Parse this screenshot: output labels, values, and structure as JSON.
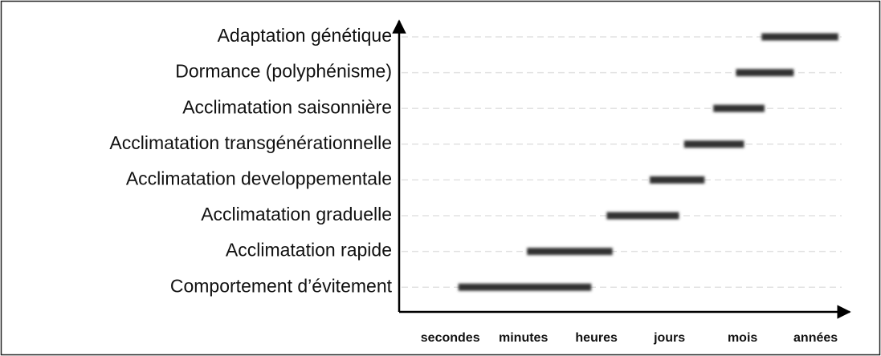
{
  "chart_data": {
    "type": "floating_bar",
    "categories": [
      "Adaptation génétique",
      "Dormance (polyphénisme)",
      "Acclimatation saisonnière",
      "Acclimatation transgénérationnelle",
      "Acclimatation developpementale",
      "Acclimatation graduelle",
      "Acclimatation rapide",
      "Comportement d’évitement"
    ],
    "start": [
      4.26,
      3.91,
      3.6,
      3.2,
      2.73,
      2.14,
      1.05,
      0.11
    ],
    "end": [
      5.31,
      4.7,
      4.3,
      4.02,
      3.48,
      3.13,
      2.22,
      1.93
    ],
    "color": "#333333",
    "xlim": [
      -0.7,
      5.4
    ],
    "xticks": [
      {
        "value": 0,
        "label": "secondes"
      },
      {
        "value": 1,
        "label": "minutes"
      },
      {
        "value": 2,
        "label": "heures"
      },
      {
        "value": 3,
        "label": "jours"
      },
      {
        "value": 4,
        "label": "mois"
      },
      {
        "value": 5,
        "label": "années"
      }
    ],
    "grid": true
  }
}
